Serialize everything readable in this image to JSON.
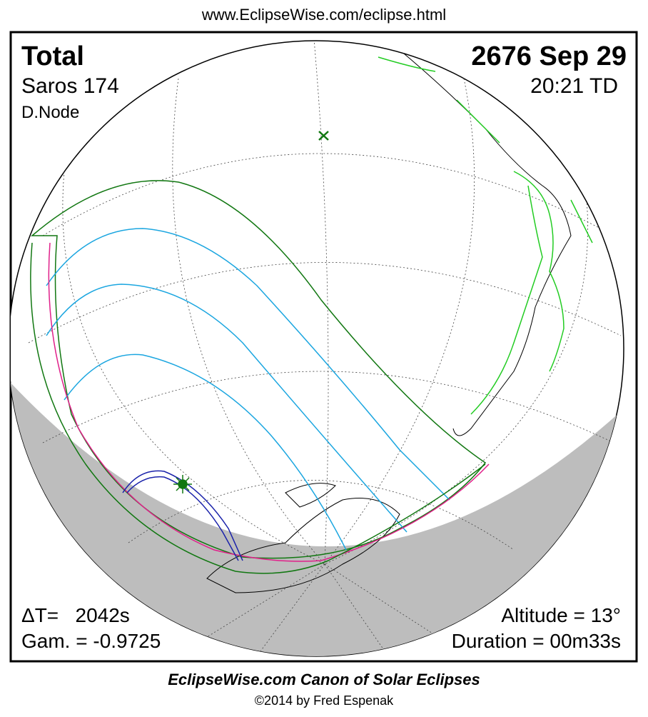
{
  "header": {
    "url": "www.EclipseWise.com/eclipse.html"
  },
  "info": {
    "type": "Total",
    "date": "2676 Sep 29",
    "saros": "Saros 174",
    "time": "20:21 TD",
    "node": "D.Node",
    "delta_t": "ΔT=   2042s",
    "gamma": "Gam. = -0.9725",
    "altitude": "Altitude = 13°",
    "duration": "Duration = 00m33s"
  },
  "footer": {
    "title": "EclipseWise.com Canon of Solar Eclipses",
    "copyright": "©2014 by Fred Espenak"
  }
}
